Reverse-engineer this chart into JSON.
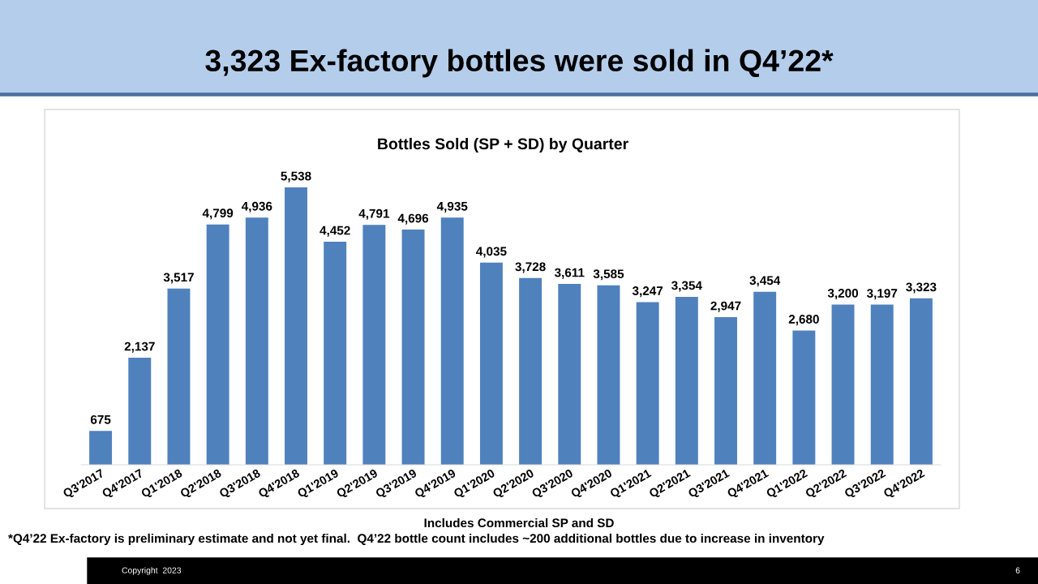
{
  "chart_data": {
    "type": "bar",
    "title": "3,323 Ex-factory bottles were sold in Q4’22*",
    "subtitle": "Bottles Sold (SP + SD) by Quarter",
    "categories": [
      "Q3'2017",
      "Q4'2017",
      "Q1'2018",
      "Q2'2018",
      "Q3'2018",
      "Q4'2018",
      "Q1'2019",
      "Q2'2019",
      "Q3'2019",
      "Q4'2019",
      "Q1'2020",
      "Q2'2020",
      "Q3'2020",
      "Q4'2020",
      "Q1'2021",
      "Q2'2021",
      "Q3'2021",
      "Q4'2021",
      "Q1'2022",
      "Q2'2022",
      "Q3'2022",
      "Q4'2022"
    ],
    "values": [
      675,
      2137,
      3517,
      4799,
      4936,
      5538,
      4452,
      4791,
      4696,
      4935,
      4035,
      3728,
      3611,
      3585,
      3247,
      3354,
      2947,
      3454,
      2680,
      3200,
      3197,
      3323
    ],
    "color": "#4f81bd",
    "value_labels": [
      "675",
      "2,137",
      "3,517",
      "4,799",
      "4,936",
      "5,538",
      "4,452",
      "4,791",
      "4,696",
      "4,935",
      "4,035",
      "3,728",
      "3,611",
      "3,585",
      "3,247",
      "3,354",
      "2,947",
      "3,454",
      "2,680",
      "3,200",
      "3,197",
      "3,323"
    ],
    "tick_labels": "x",
    "grid": false,
    "legend": false,
    "annotations": [
      "Includes Commercial SP and SD",
      "*Q4’22 Ex-factory is preliminary estimate and not yet final.  Q4’22 bottle count includes ~200 additional bottles due to increase in inventory",
      "Copyright  2023",
      "6"
    ]
  }
}
